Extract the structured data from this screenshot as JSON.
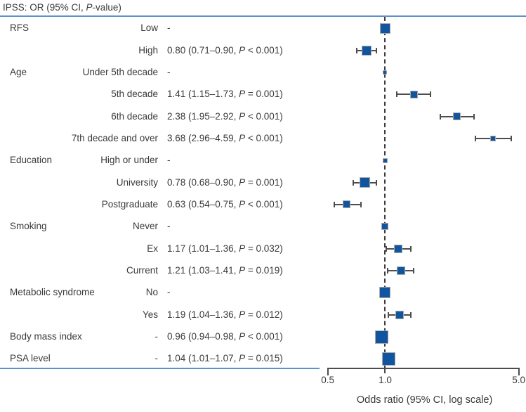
{
  "figure": {
    "title": {
      "pre": "IPSS: OR (95% CI, ",
      "p": "P",
      "post": "-value)"
    }
  },
  "chart_data": {
    "type": "scatter",
    "subtype": "forest-plot",
    "title": "IPSS: OR (95% CI, P-value)",
    "xlabel": "Odds ratio (95% CI, log scale)",
    "x_scale": "log",
    "x_range": [
      0.5,
      5.0
    ],
    "x_ticks": [
      {
        "value": 0.5,
        "label": "0.5"
      },
      {
        "value": 1.0,
        "label": "1.0"
      },
      {
        "value": 5.0,
        "label": "5.0"
      }
    ],
    "reference_line": 1.0,
    "colors": {
      "marker": "#11549f",
      "marker_border": "#a9a9a9",
      "error_bar": "#4d4d4d",
      "axis": "#4d4d4d",
      "dashed_line": "#3c3c3c",
      "blue_rule": "#5b92c8",
      "text": "#3a3a3a"
    },
    "rows": [
      {
        "group": "RFS",
        "level": "Low",
        "or": 1.0,
        "ci_low": null,
        "ci_high": null,
        "p": null,
        "reference": true,
        "marker_size": 15,
        "value_pre": "-",
        "value_p": "",
        "value_post": ""
      },
      {
        "group": "",
        "level": "High",
        "or": 0.8,
        "ci_low": 0.71,
        "ci_high": 0.9,
        "p": "<0.001",
        "reference": false,
        "marker_size": 14,
        "value_pre": "0.80 (0.71–0.90, ",
        "value_p": "P",
        "value_post": " < 0.001)"
      },
      {
        "group": "Age",
        "level": "Under 5th decade",
        "or": 1.0,
        "ci_low": null,
        "ci_high": null,
        "p": null,
        "reference": true,
        "marker_size": 6,
        "value_pre": "-",
        "value_p": "",
        "value_post": ""
      },
      {
        "group": "",
        "level": "5th decade",
        "or": 1.41,
        "ci_low": 1.15,
        "ci_high": 1.73,
        "p": "=0.001",
        "reference": false,
        "marker_size": 11,
        "value_pre": "1.41 (1.15–1.73, ",
        "value_p": "P",
        "value_post": " = 0.001)"
      },
      {
        "group": "",
        "level": "6th decade",
        "or": 2.38,
        "ci_low": 1.95,
        "ci_high": 2.92,
        "p": "<0.001",
        "reference": false,
        "marker_size": 11,
        "value_pre": "2.38 (1.95–2.92, ",
        "value_p": "P",
        "value_post": " < 0.001)"
      },
      {
        "group": "",
        "level": "7th decade and over",
        "or": 3.68,
        "ci_low": 2.96,
        "ci_high": 4.59,
        "p": "<0.001",
        "reference": false,
        "marker_size": 8,
        "value_pre": "3.68 (2.96–4.59, ",
        "value_p": "P",
        "value_post": " < 0.001)"
      },
      {
        "group": "Education",
        "level": "High or under",
        "or": 1.0,
        "ci_low": null,
        "ci_high": null,
        "p": null,
        "reference": true,
        "marker_size": 7,
        "value_pre": "-",
        "value_p": "",
        "value_post": ""
      },
      {
        "group": "",
        "level": "University",
        "or": 0.78,
        "ci_low": 0.68,
        "ci_high": 0.9,
        "p": "=0.001",
        "reference": false,
        "marker_size": 15,
        "value_pre": "0.78 (0.68–0.90, ",
        "value_p": "P",
        "value_post": " = 0.001)"
      },
      {
        "group": "",
        "level": "Postgraduate",
        "or": 0.63,
        "ci_low": 0.54,
        "ci_high": 0.75,
        "p": "<0.001",
        "reference": false,
        "marker_size": 11,
        "value_pre": "0.63 (0.54–0.75, ",
        "value_p": "P",
        "value_post": " < 0.001)"
      },
      {
        "group": "Smoking",
        "level": "Never",
        "or": 1.0,
        "ci_low": null,
        "ci_high": null,
        "p": null,
        "reference": true,
        "marker_size": 10,
        "value_pre": "-",
        "value_p": "",
        "value_post": ""
      },
      {
        "group": "",
        "level": "Ex",
        "or": 1.17,
        "ci_low": 1.01,
        "ci_high": 1.36,
        "p": "=0.032",
        "reference": false,
        "marker_size": 12,
        "value_pre": "1.17 (1.01–1.36, ",
        "value_p": "P",
        "value_post": " = 0.032)"
      },
      {
        "group": "",
        "level": "Current",
        "or": 1.21,
        "ci_low": 1.03,
        "ci_high": 1.41,
        "p": "=0.019",
        "reference": false,
        "marker_size": 12,
        "value_pre": "1.21 (1.03–1.41, ",
        "value_p": "P",
        "value_post": " = 0.019)"
      },
      {
        "group": "Metabolic syndrome",
        "level": "No",
        "or": 1.0,
        "ci_low": null,
        "ci_high": null,
        "p": null,
        "reference": true,
        "marker_size": 16,
        "value_pre": "-",
        "value_p": "",
        "value_post": ""
      },
      {
        "group": "",
        "level": "Yes",
        "or": 1.19,
        "ci_low": 1.04,
        "ci_high": 1.36,
        "p": "=0.012",
        "reference": false,
        "marker_size": 12,
        "value_pre": "1.19 (1.04–1.36, ",
        "value_p": "P",
        "value_post": " = 0.012)"
      },
      {
        "group": "Body mass index",
        "level": "-",
        "or": 0.96,
        "ci_low": 0.94,
        "ci_high": 0.98,
        "p": "<0.001",
        "reference": false,
        "marker_size": 19,
        "value_pre": "0.96 (0.94–0.98, ",
        "value_p": "P",
        "value_post": " < 0.001)"
      },
      {
        "group": "PSA level",
        "level": "-",
        "or": 1.04,
        "ci_low": 1.01,
        "ci_high": 1.07,
        "p": "=0.015",
        "reference": false,
        "marker_size": 19,
        "value_pre": "1.04 (1.01–1.07, ",
        "value_p": "P",
        "value_post": " = 0.015)"
      }
    ]
  }
}
